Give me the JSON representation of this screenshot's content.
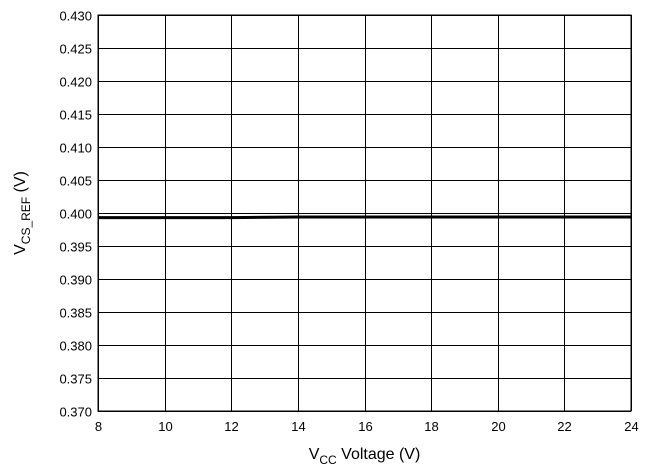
{
  "chart_data": {
    "type": "line",
    "title": "",
    "xlabel": {
      "main": "V",
      "sub": "CC",
      "rest": " Voltage (V)"
    },
    "ylabel": {
      "main": "V",
      "sub": "CS_REF",
      "rest": " (V)"
    },
    "xlim": [
      8,
      24
    ],
    "ylim": [
      0.37,
      0.43
    ],
    "x_ticks": [
      8,
      10,
      12,
      14,
      16,
      18,
      20,
      22,
      24
    ],
    "x_tick_labels": [
      "8",
      "10",
      "12",
      "14",
      "16",
      "18",
      "20",
      "22",
      "24"
    ],
    "y_ticks": [
      0.37,
      0.375,
      0.38,
      0.385,
      0.39,
      0.395,
      0.4,
      0.405,
      0.41,
      0.415,
      0.42,
      0.425,
      0.43
    ],
    "y_tick_labels": [
      "0.370",
      "0.375",
      "0.380",
      "0.385",
      "0.390",
      "0.395",
      "0.400",
      "0.405",
      "0.410",
      "0.415",
      "0.420",
      "0.425",
      "0.430"
    ],
    "grid": true,
    "series": [
      {
        "x": [
          8,
          10,
          12,
          14,
          16,
          18,
          20,
          22,
          24
        ],
        "y": [
          0.3993,
          0.3993,
          0.3993,
          0.3994,
          0.3994,
          0.3994,
          0.3994,
          0.3994,
          0.3994
        ],
        "color": "#000000"
      }
    ]
  }
}
